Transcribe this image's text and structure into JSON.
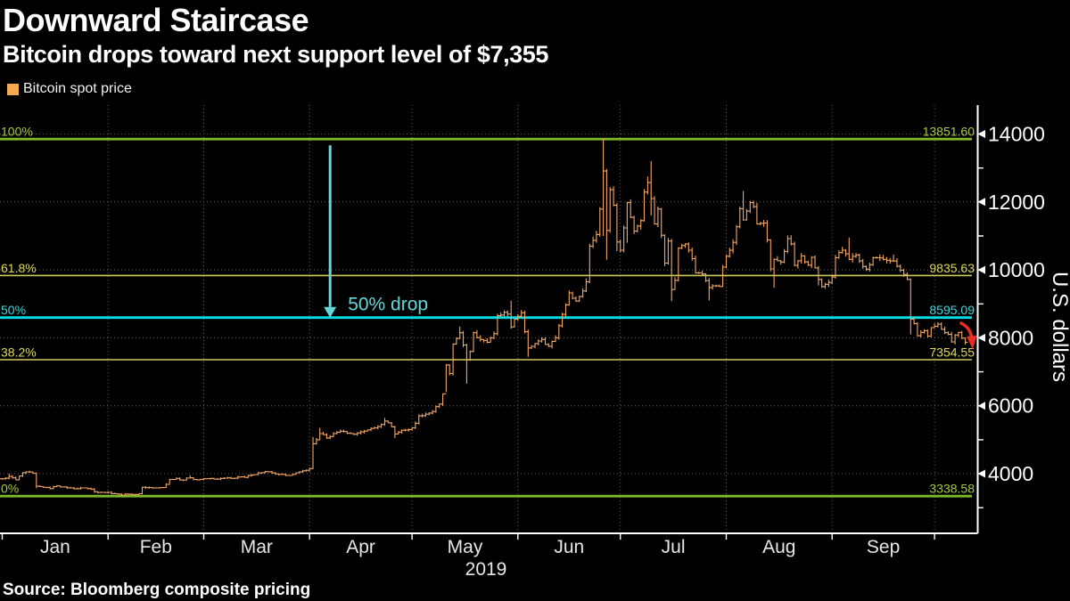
{
  "header": {
    "title": "Downward Staircase",
    "subtitle": "Bitcoin drops toward next support level of $7,355"
  },
  "legend": {
    "items": [
      {
        "label": "Bitcoin spot price",
        "color": "#F6A94F"
      }
    ]
  },
  "footer": {
    "source": "Source: Bloomberg composite pricing"
  },
  "chart_data": {
    "type": "bar",
    "subtype": "ohlc-price-bars",
    "title": "Bitcoin spot price",
    "ylabel": "U.S. dollars",
    "year_label": "2019",
    "x_unit": "day index of 2019 (0 = Jan 1)",
    "months": [
      "Jan",
      "Feb",
      "Mar",
      "Apr",
      "May",
      "Jun",
      "Jul",
      "Aug",
      "Sep"
    ],
    "month_start_days": [
      0,
      31,
      59,
      90,
      120,
      151,
      181,
      212,
      243,
      273
    ],
    "grid": "dotted",
    "colors": {
      "bars": "#F3A765",
      "grid": "#606060",
      "axis": "#FFFFFF",
      "fib_green_line": "#7DB928",
      "fib_green_text": "#A6C93F",
      "fib_yellow_line": "#CFCB5A",
      "fib_yellow_text": "#DFDA55",
      "fib_cyan_line": "#00DFE8",
      "fib_cyan_text": "#3FD9DF",
      "annotation_cyan": "#63D8DB",
      "annotation_red": "#EE2A24"
    },
    "y_axis": {
      "ylim": [
        2200,
        14850
      ],
      "major_ticks": [
        4000,
        6000,
        8000,
        10000,
        12000,
        14000
      ],
      "minor_ticks": [
        3000,
        5000,
        7000,
        9000,
        11000,
        13000
      ]
    },
    "fib_levels": [
      {
        "pct": "100%",
        "value": 13851.6,
        "label": "13851.60",
        "style": "green"
      },
      {
        "pct": "61.8%",
        "value": 9835.63,
        "label": "9835.63",
        "style": "yellow"
      },
      {
        "pct": "50%",
        "value": 8595.09,
        "label": "8595.09",
        "style": "cyan"
      },
      {
        "pct": "38.2%",
        "value": 7354.55,
        "label": "7354.55",
        "style": "yellow"
      },
      {
        "pct": "0%",
        "value": 3338.58,
        "label": "3338.58",
        "style": "green"
      }
    ],
    "annotations": [
      {
        "type": "fib-drop-arrow",
        "label": "50% drop",
        "at_day": 96,
        "from_value": 13851.6,
        "to_value": 8595.09,
        "color": "#63D8DB"
      },
      {
        "type": "momentum-arrow-down",
        "at_day": 281,
        "at_value": 8000,
        "color": "#EE2A24",
        "meaning": "price falling toward 7354.55 support"
      }
    ],
    "series": [
      {
        "name": "Bitcoin spot price",
        "color": "#F3A765",
        "bar_format": "[day, close, high?, low?]",
        "bars": [
          [
            0,
            3850
          ],
          [
            2,
            3920,
            4000
          ],
          [
            4,
            3820
          ],
          [
            6,
            4030
          ],
          [
            8,
            4050,
            4090
          ],
          [
            9,
            4010
          ],
          [
            10,
            3630,
            null,
            3570
          ],
          [
            12,
            3600
          ],
          [
            14,
            3560
          ],
          [
            16,
            3640
          ],
          [
            18,
            3610
          ],
          [
            20,
            3580
          ],
          [
            22,
            3560
          ],
          [
            24,
            3580
          ],
          [
            26,
            3540
          ],
          [
            27,
            3470
          ],
          [
            29,
            3450
          ],
          [
            31,
            3450
          ],
          [
            33,
            3410
          ],
          [
            35,
            3370,
            null,
            3340
          ],
          [
            37,
            3400
          ],
          [
            39,
            3390,
            null,
            3350
          ],
          [
            40,
            3410
          ],
          [
            41,
            3600
          ],
          [
            43,
            3590
          ],
          [
            45,
            3580
          ],
          [
            47,
            3590
          ],
          [
            49,
            3830
          ],
          [
            51,
            3860
          ],
          [
            53,
            3810
          ],
          [
            55,
            3880,
            3950
          ],
          [
            57,
            3820
          ],
          [
            59,
            3850
          ],
          [
            61,
            3860
          ],
          [
            63,
            3840
          ],
          [
            65,
            3870
          ],
          [
            67,
            3860
          ],
          [
            69,
            3900
          ],
          [
            71,
            3890
          ],
          [
            73,
            3960
          ],
          [
            75,
            4020
          ],
          [
            77,
            4060
          ],
          [
            79,
            4020
          ],
          [
            81,
            3980
          ],
          [
            83,
            3950
          ],
          [
            85,
            3980
          ],
          [
            87,
            4050
          ],
          [
            89,
            4100
          ],
          [
            90,
            4150
          ],
          [
            91,
            4880,
            5080,
            4140
          ],
          [
            92,
            5000
          ],
          [
            93,
            5180,
            5350
          ],
          [
            95,
            5050
          ],
          [
            97,
            5180
          ],
          [
            99,
            5250
          ],
          [
            101,
            5190
          ],
          [
            103,
            5160
          ],
          [
            105,
            5230
          ],
          [
            107,
            5290
          ],
          [
            109,
            5350
          ],
          [
            111,
            5450
          ],
          [
            112,
            5550,
            5640
          ],
          [
            114,
            5380
          ],
          [
            115,
            5170,
            null,
            5050
          ],
          [
            117,
            5280
          ],
          [
            119,
            5300
          ],
          [
            120,
            5350
          ],
          [
            122,
            5700
          ],
          [
            124,
            5750
          ],
          [
            126,
            5830
          ],
          [
            128,
            6050
          ],
          [
            129,
            6350
          ],
          [
            130,
            7200,
            null,
            6400
          ],
          [
            131,
            6950
          ],
          [
            132,
            7820
          ],
          [
            133,
            7980
          ],
          [
            134,
            8150,
            8330
          ],
          [
            136,
            7350,
            null,
            6650
          ],
          [
            137,
            7600
          ],
          [
            138,
            8150
          ],
          [
            140,
            7950
          ],
          [
            142,
            7870
          ],
          [
            144,
            8120
          ],
          [
            145,
            8650
          ],
          [
            147,
            8750
          ],
          [
            148,
            8700
          ],
          [
            149,
            8320,
            9090
          ],
          [
            150,
            8550
          ],
          [
            152,
            8740
          ],
          [
            154,
            7700,
            null,
            7440
          ],
          [
            156,
            7830
          ],
          [
            158,
            7950
          ],
          [
            160,
            7750
          ],
          [
            162,
            8000
          ],
          [
            164,
            8690
          ],
          [
            166,
            9320
          ],
          [
            168,
            9080
          ],
          [
            170,
            9380
          ],
          [
            171,
            9650
          ],
          [
            172,
            10700
          ],
          [
            174,
            11040
          ],
          [
            175,
            11790
          ],
          [
            176,
            12910,
            13851,
            11000
          ],
          [
            177,
            11160,
            null,
            10300
          ],
          [
            178,
            12360
          ],
          [
            179,
            11900
          ],
          [
            180,
            10820,
            null,
            10550
          ],
          [
            181,
            10580
          ],
          [
            183,
            11980,
            12000,
            10800
          ],
          [
            185,
            11140
          ],
          [
            187,
            11450
          ],
          [
            188,
            12290
          ],
          [
            189,
            12570,
            12750
          ],
          [
            190,
            12100,
            13200,
            11600
          ],
          [
            191,
            11350
          ],
          [
            192,
            11790
          ],
          [
            194,
            10200
          ],
          [
            195,
            10850
          ],
          [
            196,
            9420,
            null,
            9080
          ],
          [
            197,
            9690
          ],
          [
            198,
            10640
          ],
          [
            200,
            10760
          ],
          [
            201,
            10580
          ],
          [
            202,
            10330
          ],
          [
            203,
            9910
          ],
          [
            205,
            9880
          ],
          [
            207,
            9480,
            null,
            9100
          ],
          [
            208,
            9530
          ],
          [
            210,
            9510
          ],
          [
            211,
            10080
          ],
          [
            212,
            10400
          ],
          [
            214,
            10810
          ],
          [
            216,
            11800
          ],
          [
            217,
            11470,
            12320
          ],
          [
            219,
            11980
          ],
          [
            220,
            11860
          ],
          [
            221,
            11350
          ],
          [
            223,
            11380
          ],
          [
            224,
            10880
          ],
          [
            225,
            10030
          ],
          [
            226,
            10310,
            null,
            9470
          ],
          [
            228,
            10230
          ],
          [
            230,
            10920
          ],
          [
            231,
            10760
          ],
          [
            232,
            10130
          ],
          [
            234,
            10410
          ],
          [
            236,
            10140
          ],
          [
            237,
            10370
          ],
          [
            239,
            9720,
            null,
            9540
          ],
          [
            240,
            9510
          ],
          [
            242,
            9630
          ],
          [
            243,
            9790
          ],
          [
            244,
            10360
          ],
          [
            246,
            10580
          ],
          [
            248,
            10310,
            10950
          ],
          [
            250,
            10440
          ],
          [
            252,
            10100
          ],
          [
            253,
            10020
          ],
          [
            255,
            10360
          ],
          [
            257,
            10350
          ],
          [
            259,
            10280
          ],
          [
            261,
            10260,
            10450
          ],
          [
            263,
            9990
          ],
          [
            265,
            9720
          ],
          [
            266,
            8550,
            9750,
            8100
          ],
          [
            267,
            8420
          ],
          [
            268,
            8060
          ],
          [
            269,
            8160
          ],
          [
            270,
            8210
          ],
          [
            271,
            8050
          ],
          [
            272,
            8300
          ],
          [
            273,
            8340
          ],
          [
            274,
            8400
          ],
          [
            275,
            8250
          ],
          [
            276,
            8150
          ],
          [
            277,
            8100
          ],
          [
            278,
            7880
          ],
          [
            279,
            8080
          ],
          [
            280,
            8160
          ],
          [
            281,
            7990
          ],
          [
            282,
            7870
          ]
        ]
      }
    ]
  }
}
